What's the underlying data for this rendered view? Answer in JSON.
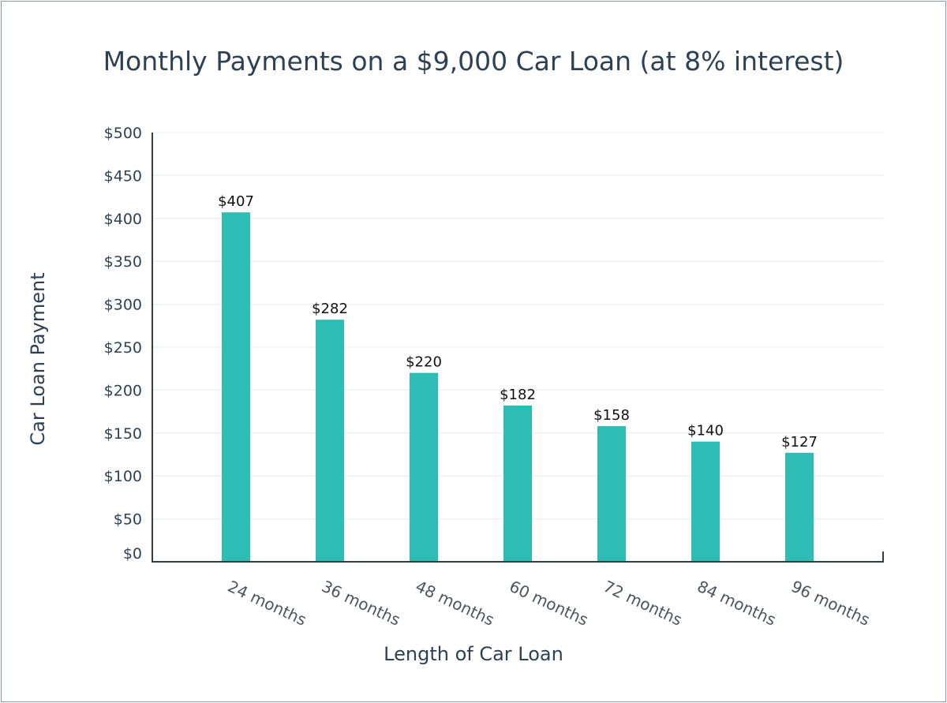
{
  "chart_data": {
    "type": "bar",
    "title": "Monthly Payments on a $9,000 Car Loan (at 8% interest)",
    "xlabel": "Length of Car Loan",
    "ylabel": "Car Loan Payment",
    "categories": [
      "24 months",
      "36 months",
      "48 months",
      "60 months",
      "72 months",
      "84 months",
      "96 months"
    ],
    "values": [
      407,
      282,
      220,
      182,
      158,
      140,
      127
    ],
    "value_labels": [
      "$407",
      "$282",
      "$220",
      "$182",
      "$158",
      "$140",
      "$127"
    ],
    "ylim": [
      0,
      500
    ],
    "yticks": [
      0,
      50,
      100,
      150,
      200,
      250,
      300,
      350,
      400,
      450,
      500
    ],
    "ytick_labels": [
      "$0",
      "$50",
      "$100",
      "$150",
      "$200",
      "$250",
      "$300",
      "$350",
      "$400",
      "$450",
      "$500"
    ],
    "grid": true,
    "bar_color": "#2ebdb4",
    "text_color": "#2d4154"
  }
}
